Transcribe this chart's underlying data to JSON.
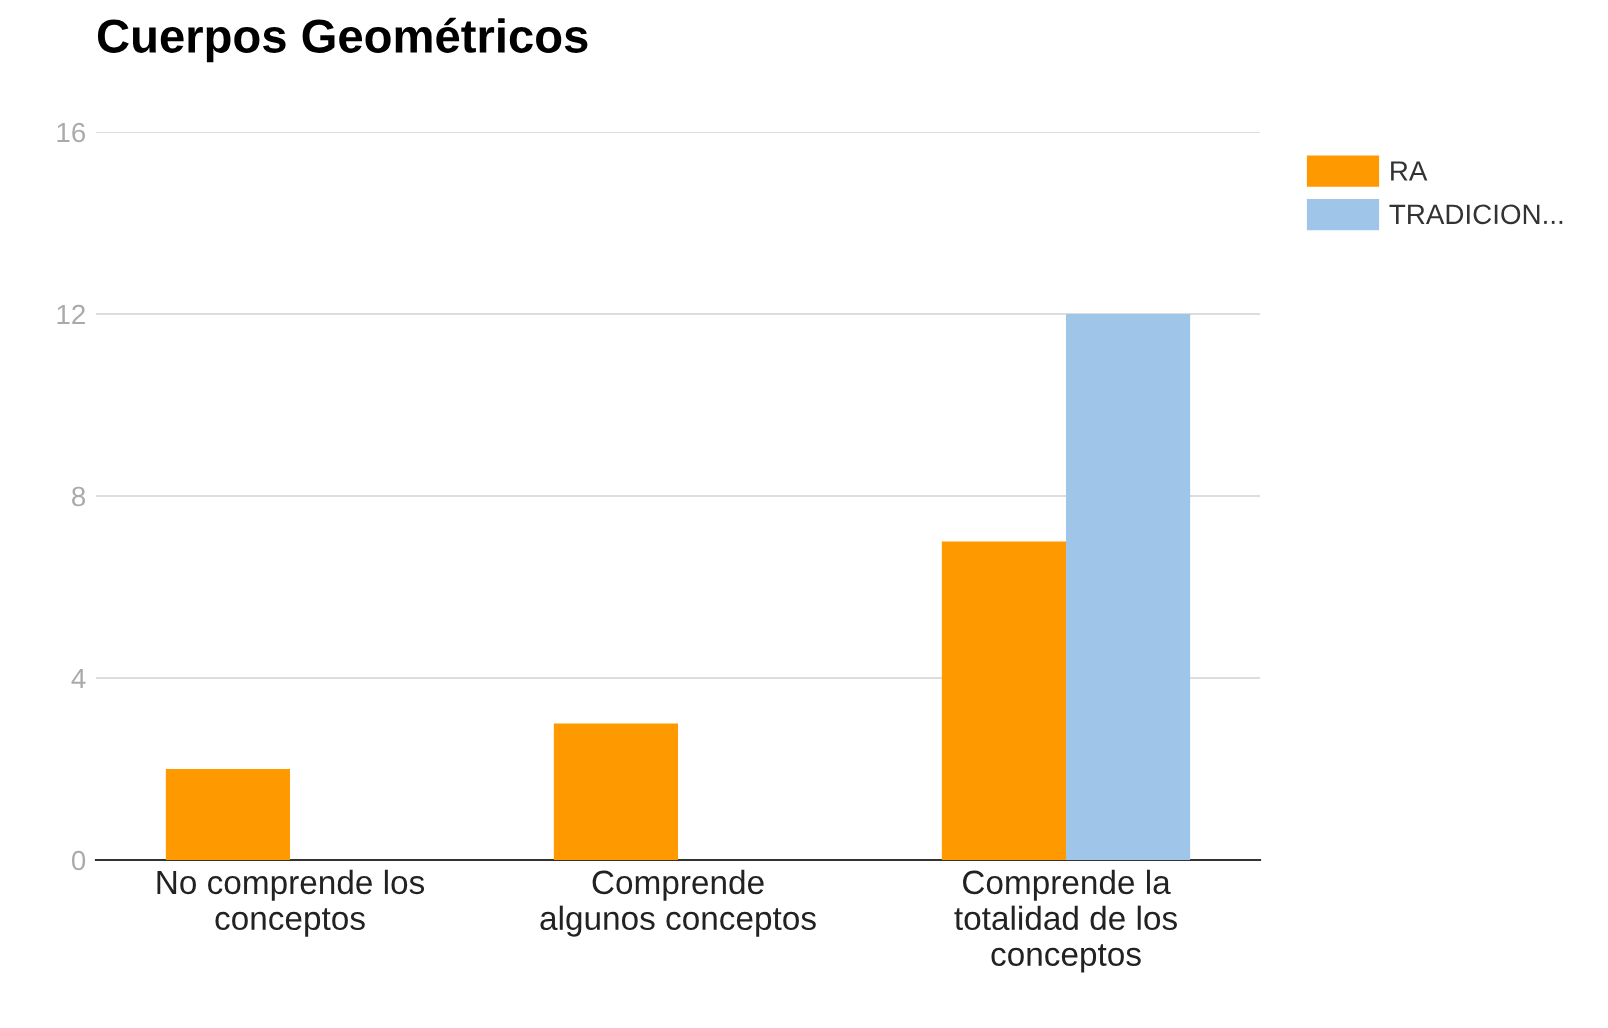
{
  "chart_data": {
    "type": "bar",
    "title": "Cuerpos Geométricos",
    "categories": [
      "No comprende los\nconceptos",
      "Comprende\nalgunos conceptos",
      "Comprende la\ntotalidad de los\nconceptos"
    ],
    "series": [
      {
        "name": "RA",
        "color": "#ff9900",
        "values": [
          2,
          3,
          7
        ]
      },
      {
        "name": "TRADICION...",
        "color": "#9fc5e8",
        "values": [
          0,
          0,
          12
        ]
      }
    ],
    "ylim": [
      0,
      16
    ],
    "yticks": [
      0,
      4,
      8,
      12,
      16
    ],
    "grid": "y",
    "legend": "right"
  }
}
